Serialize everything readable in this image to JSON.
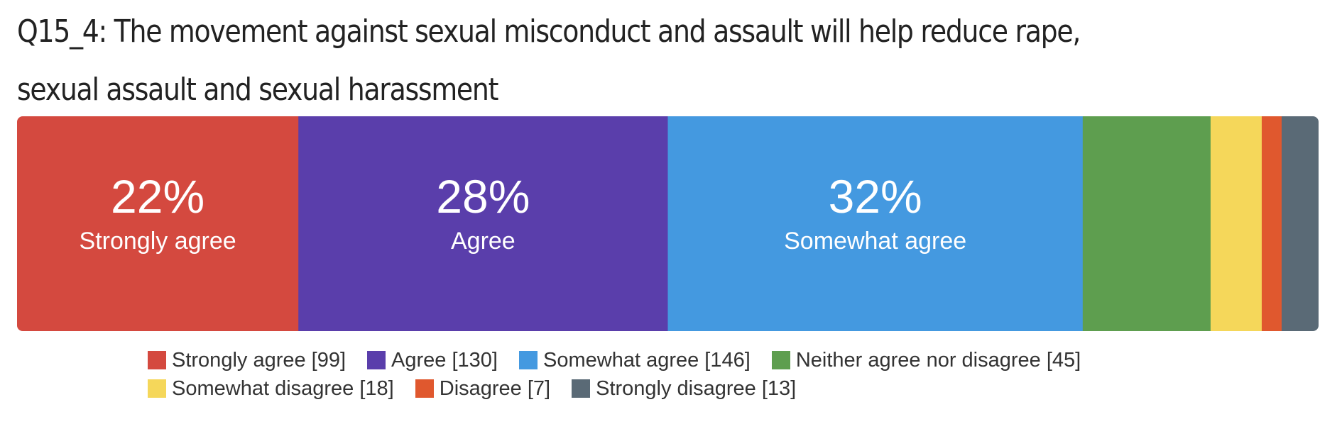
{
  "chart_data": {
    "type": "bar",
    "orientation": "horizontal-stacked-100",
    "title": "Q15_4: The movement against sexual misconduct and assault will help reduce rape, sexual assault and sexual harassment",
    "categories": [
      "Strongly agree",
      "Agree",
      "Somewhat agree",
      "Neither agree nor disagree",
      "Somewhat disagree",
      "Disagree",
      "Strongly disagree"
    ],
    "values": [
      99,
      130,
      146,
      45,
      18,
      7,
      13
    ],
    "percent_labels": [
      "22%",
      "28%",
      "32%",
      "",
      "",
      "",
      ""
    ],
    "segment_labels": [
      "Strongly agree",
      "Agree",
      "Somewhat agree",
      "",
      "",
      "",
      ""
    ],
    "colors": [
      "#d4493f",
      "#5a3eab",
      "#4499e0",
      "#5e9e4f",
      "#f5d75a",
      "#e0582e",
      "#5a6a76"
    ],
    "legend_position": "bottom",
    "legend": [
      [
        "Strongly agree [99]",
        "Agree [130]",
        "Somewhat agree [146]",
        "Neither agree nor disagree [45]"
      ],
      [
        "Somewhat disagree [18]",
        "Disagree [7]",
        "Strongly disagree [13]"
      ]
    ]
  }
}
